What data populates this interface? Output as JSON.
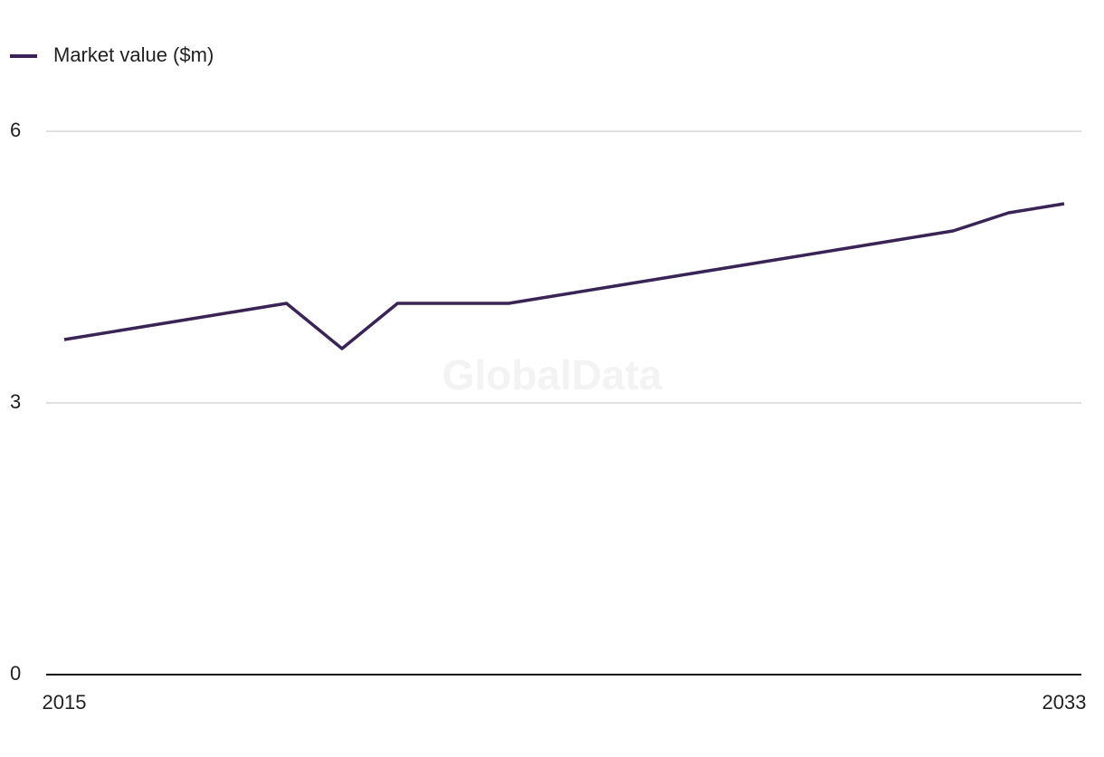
{
  "chart_data": {
    "type": "line",
    "watermark": "GlobalData",
    "x": [
      2015,
      2016,
      2017,
      2018,
      2019,
      2020,
      2021,
      2022,
      2023,
      2024,
      2025,
      2026,
      2027,
      2028,
      2029,
      2030,
      2031,
      2032,
      2033
    ],
    "series": [
      {
        "name": "Market value ($m)",
        "color": "#3a2456",
        "values": [
          3.7,
          3.8,
          3.9,
          4.0,
          4.1,
          3.6,
          4.1,
          4.1,
          4.1,
          4.2,
          4.3,
          4.4,
          4.5,
          4.6,
          4.7,
          4.8,
          4.9,
          5.1,
          5.2
        ]
      }
    ],
    "xlim": [
      2015,
      2033
    ],
    "xticks": [
      2015,
      2033
    ],
    "ylim": [
      0,
      6
    ],
    "yticks": [
      0,
      3,
      6
    ],
    "grid": true,
    "legend": "top-left"
  }
}
